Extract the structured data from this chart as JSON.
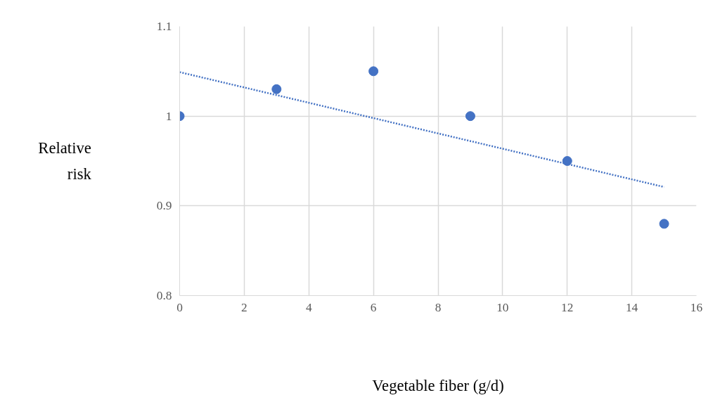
{
  "chart_data": {
    "type": "scatter",
    "xlabel": "Vegetable fiber (g/d)",
    "ylabel": "Relative risk",
    "x": [
      0,
      3,
      6,
      9,
      12,
      15
    ],
    "series": [
      {
        "color": "#4472c4",
        "values": [
          1.0,
          1.03,
          1.05,
          1.0,
          0.95,
          0.88
        ]
      },
      {
        "type": "line",
        "color": "#4472c4",
        "x": [
          0,
          15
        ],
        "values": [
          1.049,
          0.921
        ],
        "line_style": "dotted",
        "marker": "none"
      }
    ],
    "xlim": [
      0,
      16
    ],
    "xticks": [
      0,
      2,
      4,
      6,
      8,
      10,
      12,
      14,
      16
    ],
    "ylim": [
      0.8,
      1.1
    ],
    "yticks": [
      0.8,
      0.9,
      {
        "value": 1.0,
        "label": "1"
      },
      1.1
    ],
    "grid": true,
    "marker": "circle"
  }
}
